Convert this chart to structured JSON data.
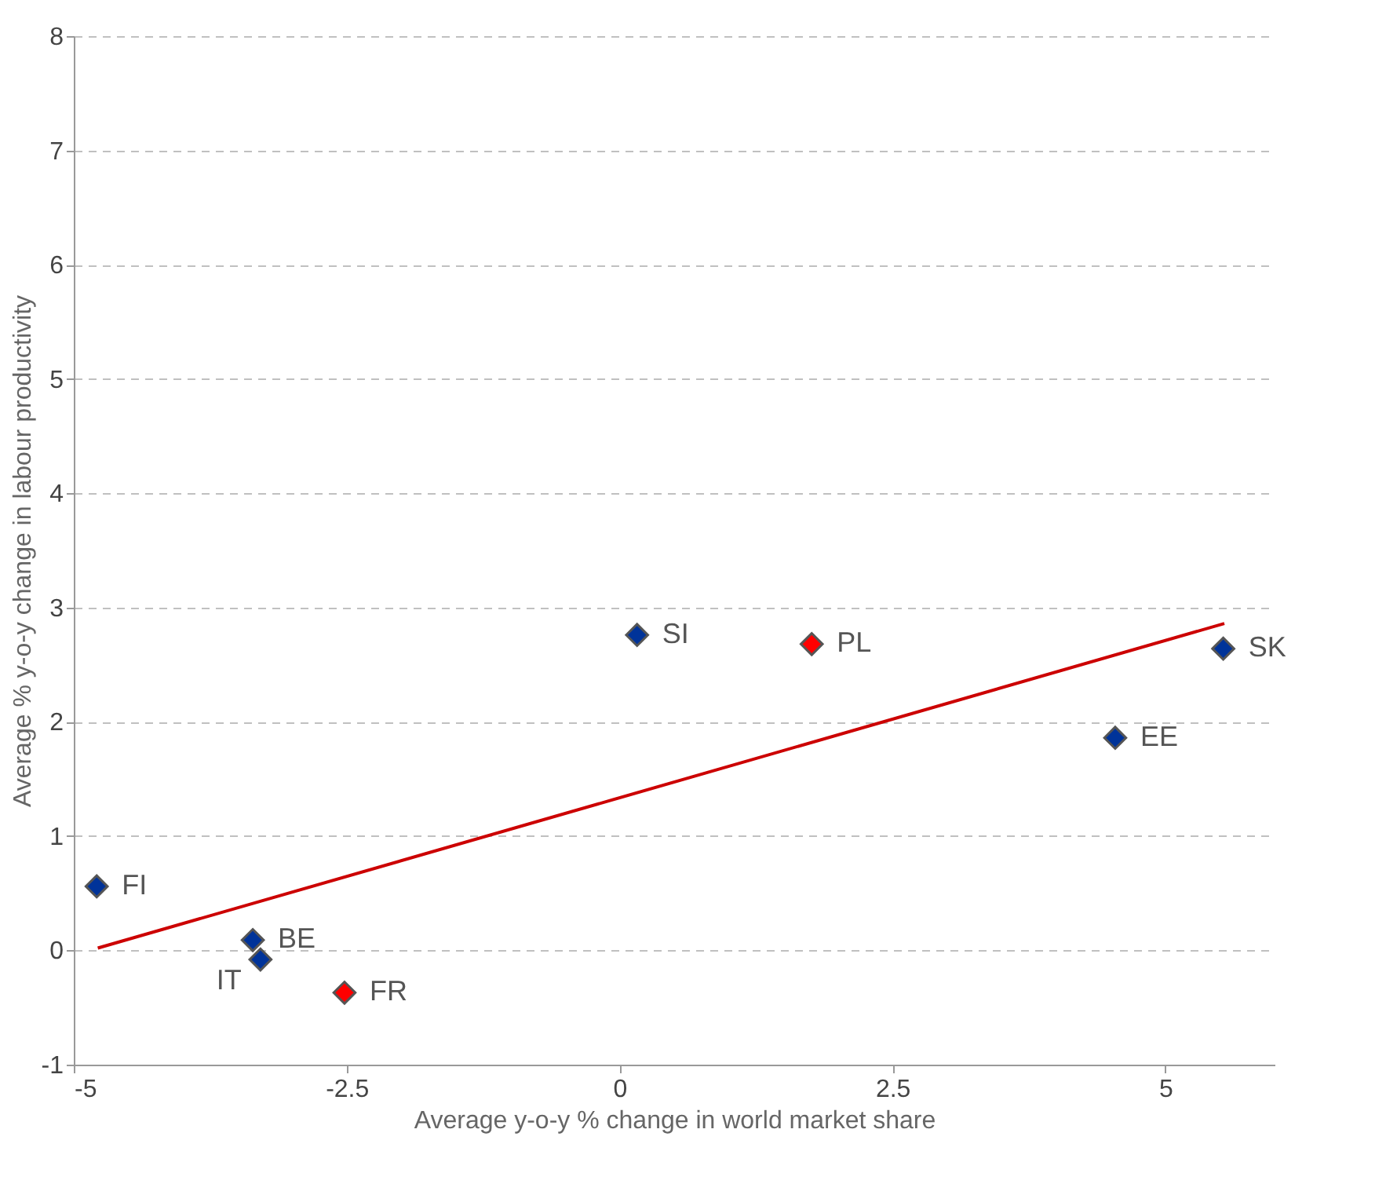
{
  "chart_data": {
    "type": "scatter",
    "xlabel": "Average y-o-y % change in world market share",
    "ylabel": "Average % y-o-y change in labour productivity",
    "xlim": [
      -5,
      6
    ],
    "xticks": [
      -5,
      -2.5,
      0,
      2.5,
      5
    ],
    "ylim": [
      -1,
      8
    ],
    "yticks": [
      -1,
      0,
      1,
      2,
      3,
      4,
      5,
      6,
      7,
      8
    ],
    "grid": "y",
    "marker": "diamond",
    "series": [
      {
        "color": "#003399",
        "x": [
          -4.79,
          -3.36,
          -3.29,
          0.16,
          4.54,
          5.53
        ],
        "values": [
          0.56,
          0.09,
          -0.08,
          2.76,
          1.86,
          2.64
        ]
      },
      {
        "color": "#ff0000",
        "x": [
          -2.52,
          1.76
        ],
        "values": [
          -0.37,
          2.68
        ]
      },
      {
        "type": "line",
        "marker": "none",
        "color": "#cc0000",
        "x": [
          -4.78,
          5.54
        ],
        "values": [
          0.02,
          2.86
        ]
      }
    ],
    "annotations": [
      {
        "text": "FI",
        "x": -4.79,
        "y": 0.56
      },
      {
        "text": "BE",
        "x": -3.36,
        "y": 0.09
      },
      {
        "text": "IT",
        "x": -3.29,
        "y": -0.08
      },
      {
        "text": "FR",
        "x": -2.52,
        "y": -0.37
      },
      {
        "text": "SI",
        "x": 0.16,
        "y": 2.76
      },
      {
        "text": "PL",
        "x": 1.76,
        "y": 2.68
      },
      {
        "text": "EE",
        "x": 4.54,
        "y": 1.86
      },
      {
        "text": "SK",
        "x": 5.53,
        "y": 2.64
      }
    ]
  }
}
